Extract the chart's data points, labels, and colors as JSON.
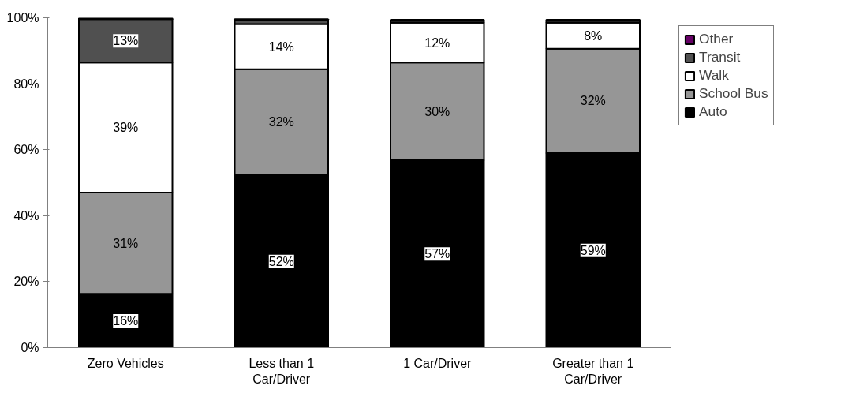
{
  "chart_data": {
    "type": "bar",
    "stacked": true,
    "categories": [
      "Zero Vehicles",
      "Less than 1 Car/Driver",
      "1 Car/Driver",
      "Greater than 1 Car/Driver"
    ],
    "series": [
      {
        "name": "Auto",
        "color": "#000000",
        "values": [
          16.3,
          52.3,
          56.8,
          59.0
        ],
        "value_labels": [
          "16%",
          "52%",
          "57%",
          "59%"
        ]
      },
      {
        "name": "School Bus",
        "color": "#969696",
        "values": [
          30.7,
          32.1,
          29.6,
          31.6
        ],
        "value_labels": [
          "31%",
          "32%",
          "30%",
          "32%"
        ]
      },
      {
        "name": "Walk",
        "color": "#ffffff",
        "values": [
          39.4,
          13.7,
          12.1,
          7.9
        ],
        "value_labels": [
          "39%",
          "14%",
          "12%",
          "8%"
        ]
      },
      {
        "name": "Transit",
        "color": "#505050",
        "values": [
          13.2,
          1.2,
          0.6,
          0.6
        ],
        "value_labels": [
          "13%",
          null,
          null,
          null
        ]
      },
      {
        "name": "Other",
        "color": "#660066",
        "values": [
          0.3,
          0.3,
          0.3,
          0.3
        ],
        "value_labels": [
          null,
          null,
          null,
          null
        ]
      }
    ],
    "ylim": [
      0,
      100
    ],
    "yticks": [
      {
        "value": 0,
        "label": "0%"
      },
      {
        "value": 20,
        "label": "20%"
      },
      {
        "value": 40,
        "label": "40%"
      },
      {
        "value": 60,
        "label": "60%"
      },
      {
        "value": 80,
        "label": "80%"
      },
      {
        "value": 100,
        "label": "100%"
      }
    ],
    "grid": false,
    "legend": "top right"
  }
}
